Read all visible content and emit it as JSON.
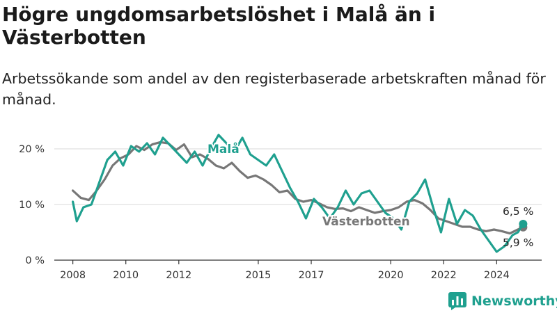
{
  "title": "Högre ungdomsarbetslöshet i Malå än i Västerbotten",
  "subtitle": "Arbetssökande som andel av den registerbaserade arbetskraften månad för månad.",
  "brand": "Newsworthy",
  "colors": {
    "mala": "#1fa08f",
    "vasterbotten": "#777777",
    "grid": "#d9d9d9",
    "axis": "#333333"
  },
  "chart_data": {
    "type": "line",
    "x_unit": "year",
    "xlim": [
      2007.3,
      2025.7
    ],
    "ylim": [
      0,
      21
    ],
    "y_ticks": [
      {
        "value": 0,
        "label": "0 %"
      },
      {
        "value": 10,
        "label": "10 %"
      },
      {
        "value": 20,
        "label": "20 %"
      }
    ],
    "x_ticks": [
      {
        "value": 2008,
        "label": "2008"
      },
      {
        "value": 2010,
        "label": "2010"
      },
      {
        "value": 2012,
        "label": "2012"
      },
      {
        "value": 2015,
        "label": "2015"
      },
      {
        "value": 2017,
        "label": "2017"
      },
      {
        "value": 2020,
        "label": "2020"
      },
      {
        "value": 2022,
        "label": "2022"
      },
      {
        "value": 2024,
        "label": "2024"
      }
    ],
    "grid": true,
    "series": [
      {
        "name": "Västerbotten",
        "end_label": "5,9 %",
        "points": [
          [
            2008.0,
            12.5
          ],
          [
            2008.3,
            11.2
          ],
          [
            2008.6,
            10.8
          ],
          [
            2008.9,
            12.5
          ],
          [
            2009.2,
            14.5
          ],
          [
            2009.5,
            17.0
          ],
          [
            2009.8,
            18.3
          ],
          [
            2010.1,
            19.0
          ],
          [
            2010.4,
            20.5
          ],
          [
            2010.7,
            19.8
          ],
          [
            2011.0,
            20.8
          ],
          [
            2011.3,
            21.2
          ],
          [
            2011.6,
            21.0
          ],
          [
            2011.9,
            19.8
          ],
          [
            2012.2,
            20.8
          ],
          [
            2012.5,
            18.5
          ],
          [
            2012.8,
            19.0
          ],
          [
            2013.1,
            18.2
          ],
          [
            2013.4,
            17.0
          ],
          [
            2013.7,
            16.5
          ],
          [
            2014.0,
            17.5
          ],
          [
            2014.3,
            16.0
          ],
          [
            2014.6,
            14.8
          ],
          [
            2014.9,
            15.2
          ],
          [
            2015.2,
            14.5
          ],
          [
            2015.5,
            13.5
          ],
          [
            2015.8,
            12.2
          ],
          [
            2016.1,
            12.5
          ],
          [
            2016.4,
            11.0
          ],
          [
            2016.7,
            10.5
          ],
          [
            2017.0,
            10.8
          ],
          [
            2017.3,
            10.2
          ],
          [
            2017.6,
            9.5
          ],
          [
            2017.9,
            9.2
          ],
          [
            2018.2,
            9.3
          ],
          [
            2018.5,
            8.8
          ],
          [
            2018.8,
            9.5
          ],
          [
            2019.1,
            9.0
          ],
          [
            2019.4,
            8.5
          ],
          [
            2019.7,
            8.8
          ],
          [
            2020.0,
            9.0
          ],
          [
            2020.3,
            9.5
          ],
          [
            2020.6,
            10.5
          ],
          [
            2020.9,
            10.8
          ],
          [
            2021.2,
            10.2
          ],
          [
            2021.5,
            9.0
          ],
          [
            2021.8,
            7.5
          ],
          [
            2022.1,
            7.0
          ],
          [
            2022.4,
            6.5
          ],
          [
            2022.7,
            6.0
          ],
          [
            2023.0,
            6.0
          ],
          [
            2023.3,
            5.5
          ],
          [
            2023.6,
            5.2
          ],
          [
            2023.9,
            5.5
          ],
          [
            2024.2,
            5.2
          ],
          [
            2024.5,
            4.8
          ],
          [
            2024.8,
            5.5
          ],
          [
            2025.0,
            5.9
          ]
        ]
      },
      {
        "name": "Malå",
        "end_label": "6,5 %",
        "points": [
          [
            2008.0,
            10.5
          ],
          [
            2008.15,
            7.0
          ],
          [
            2008.4,
            9.5
          ],
          [
            2008.7,
            10.0
          ],
          [
            2009.0,
            14.0
          ],
          [
            2009.3,
            18.0
          ],
          [
            2009.6,
            19.5
          ],
          [
            2009.9,
            17.0
          ],
          [
            2010.2,
            20.5
          ],
          [
            2010.5,
            19.5
          ],
          [
            2010.8,
            21.0
          ],
          [
            2011.1,
            19.0
          ],
          [
            2011.4,
            22.0
          ],
          [
            2011.7,
            20.5
          ],
          [
            2012.0,
            19.0
          ],
          [
            2012.3,
            17.5
          ],
          [
            2012.6,
            19.5
          ],
          [
            2012.9,
            17.0
          ],
          [
            2013.2,
            20.0
          ],
          [
            2013.5,
            22.5
          ],
          [
            2013.8,
            21.0
          ],
          [
            2014.1,
            19.5
          ],
          [
            2014.4,
            22.0
          ],
          [
            2014.7,
            19.0
          ],
          [
            2015.0,
            18.0
          ],
          [
            2015.3,
            17.0
          ],
          [
            2015.6,
            19.0
          ],
          [
            2015.9,
            16.0
          ],
          [
            2016.2,
            13.0
          ],
          [
            2016.5,
            10.5
          ],
          [
            2016.8,
            7.5
          ],
          [
            2017.1,
            11.0
          ],
          [
            2017.4,
            9.5
          ],
          [
            2017.7,
            7.5
          ],
          [
            2018.0,
            9.5
          ],
          [
            2018.3,
            12.5
          ],
          [
            2018.6,
            10.0
          ],
          [
            2018.9,
            12.0
          ],
          [
            2019.2,
            12.5
          ],
          [
            2019.5,
            10.5
          ],
          [
            2019.8,
            8.5
          ],
          [
            2020.1,
            7.5
          ],
          [
            2020.4,
            5.5
          ],
          [
            2020.7,
            10.5
          ],
          [
            2021.0,
            12.0
          ],
          [
            2021.3,
            14.5
          ],
          [
            2021.6,
            9.5
          ],
          [
            2021.9,
            5.0
          ],
          [
            2022.2,
            11.0
          ],
          [
            2022.5,
            6.5
          ],
          [
            2022.8,
            9.0
          ],
          [
            2023.1,
            8.0
          ],
          [
            2023.4,
            5.5
          ],
          [
            2023.7,
            3.5
          ],
          [
            2024.0,
            1.5
          ],
          [
            2024.3,
            2.5
          ],
          [
            2024.6,
            4.5
          ],
          [
            2024.8,
            5.0
          ],
          [
            2025.0,
            6.5
          ]
        ]
      }
    ]
  }
}
